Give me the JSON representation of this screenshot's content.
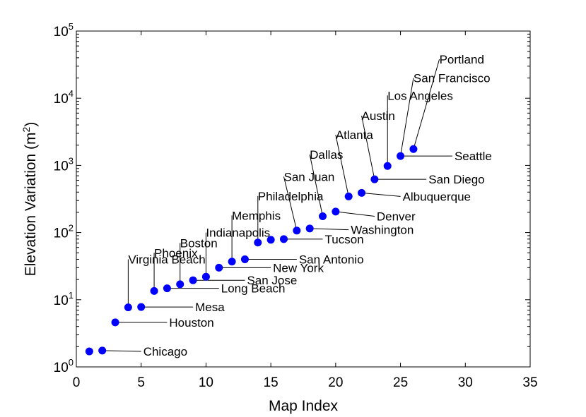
{
  "chart_data": {
    "type": "scatter",
    "title": "",
    "xlabel": "Map Index",
    "ylabel_main": "Elevation Variation (m",
    "ylabel_sup": "2",
    "ylabel_close": ")",
    "xlim": [
      0,
      35
    ],
    "ylim": [
      1,
      100000
    ],
    "yscale": "log",
    "grid": false,
    "marker_color": "#0000ff",
    "x_ticks": [
      0,
      5,
      10,
      15,
      20,
      25,
      30,
      35
    ],
    "x_tick_labels": [
      "0",
      "5",
      "10",
      "15",
      "20",
      "25",
      "30",
      "35"
    ],
    "y_ticks": [
      {
        "value": 1,
        "base": "10",
        "exp": "0"
      },
      {
        "value": 10,
        "base": "10",
        "exp": "1"
      },
      {
        "value": 100,
        "base": "10",
        "exp": "2"
      },
      {
        "value": 1000,
        "base": "10",
        "exp": "3"
      },
      {
        "value": 10000,
        "base": "10",
        "exp": "4"
      },
      {
        "value": 100000,
        "base": "10",
        "exp": "5"
      }
    ],
    "points": [
      {
        "x": 1,
        "y": 1.7,
        "label": "",
        "side": "none"
      },
      {
        "x": 2,
        "y": 1.75,
        "label": "Chicago",
        "side": "right",
        "labelX": 5,
        "labelY": 1.7
      },
      {
        "x": 3,
        "y": 4.6,
        "label": "Houston",
        "side": "right",
        "labelX": 7,
        "labelY": 4.6
      },
      {
        "x": 4,
        "y": 7.7,
        "label": "Virginia Beach",
        "side": "left",
        "labelX": 4,
        "labelY": 40
      },
      {
        "x": 5,
        "y": 7.8,
        "label": "Mesa",
        "side": "right",
        "labelX": 9,
        "labelY": 7.8
      },
      {
        "x": 6,
        "y": 13.5,
        "label": "Phoenix",
        "side": "left",
        "labelX": 6,
        "labelY": 50
      },
      {
        "x": 7,
        "y": 14.8,
        "label": "Long Beach",
        "side": "right",
        "labelX": 11,
        "labelY": 14.8
      },
      {
        "x": 8,
        "y": 17,
        "label": "Boston",
        "side": "left",
        "labelX": 8,
        "labelY": 70
      },
      {
        "x": 9,
        "y": 19.5,
        "label": "San Jose",
        "side": "right",
        "labelX": 13,
        "labelY": 19.5
      },
      {
        "x": 10,
        "y": 22,
        "label": "Indianapolis",
        "side": "left",
        "labelX": 10,
        "labelY": 100
      },
      {
        "x": 11,
        "y": 30,
        "label": "New York",
        "side": "right",
        "labelX": 15,
        "labelY": 30
      },
      {
        "x": 12,
        "y": 37,
        "label": "Memphis",
        "side": "left",
        "labelX": 12,
        "labelY": 180
      },
      {
        "x": 13,
        "y": 40,
        "label": "San Antonio",
        "side": "right",
        "labelX": 17,
        "labelY": 40
      },
      {
        "x": 14,
        "y": 71,
        "label": "Philadelphia",
        "side": "left",
        "labelX": 14,
        "labelY": 350
      },
      {
        "x": 15,
        "y": 78,
        "label": "",
        "side": "none"
      },
      {
        "x": 16,
        "y": 80,
        "label": "Tucson",
        "side": "right",
        "labelX": 19,
        "labelY": 80
      },
      {
        "x": 17,
        "y": 107,
        "label": "San Juan",
        "side": "left",
        "labelX": 16,
        "labelY": 680
      },
      {
        "x": 18,
        "y": 115,
        "label": "Washington",
        "side": "right",
        "labelX": 21,
        "labelY": 110
      },
      {
        "x": 19,
        "y": 175,
        "label": "Dallas",
        "side": "left",
        "labelX": 18,
        "labelY": 1450
      },
      {
        "x": 20,
        "y": 205,
        "label": "Denver",
        "side": "right",
        "labelX": 23,
        "labelY": 175
      },
      {
        "x": 21,
        "y": 345,
        "label": "Atlanta",
        "side": "left",
        "labelX": 20,
        "labelY": 2850
      },
      {
        "x": 22,
        "y": 390,
        "label": "Albuquerque",
        "side": "right",
        "labelX": 25,
        "labelY": 345
      },
      {
        "x": 23,
        "y": 620,
        "label": "Austin",
        "side": "left",
        "labelX": 22,
        "labelY": 5500
      },
      {
        "x": 24,
        "y": 980,
        "label": "Los Angeles",
        "side": "left",
        "labelX": 24,
        "labelY": 11000
      },
      {
        "x": 25,
        "y": 1380,
        "label": "San Francisco",
        "side": "left",
        "labelX": 26,
        "labelY": 20000
      },
      {
        "x": 26,
        "y": 1750,
        "label": "Portland",
        "side": "left",
        "labelX": 28,
        "labelY": 38000
      }
    ],
    "extra_labels": [
      {
        "label": "San Diego",
        "fromX": 23,
        "fromY": 620,
        "labelX": 27,
        "labelY": 620
      },
      {
        "label": "Seattle",
        "fromX": 25,
        "fromY": 1380,
        "labelX": 29,
        "labelY": 1380
      }
    ]
  }
}
